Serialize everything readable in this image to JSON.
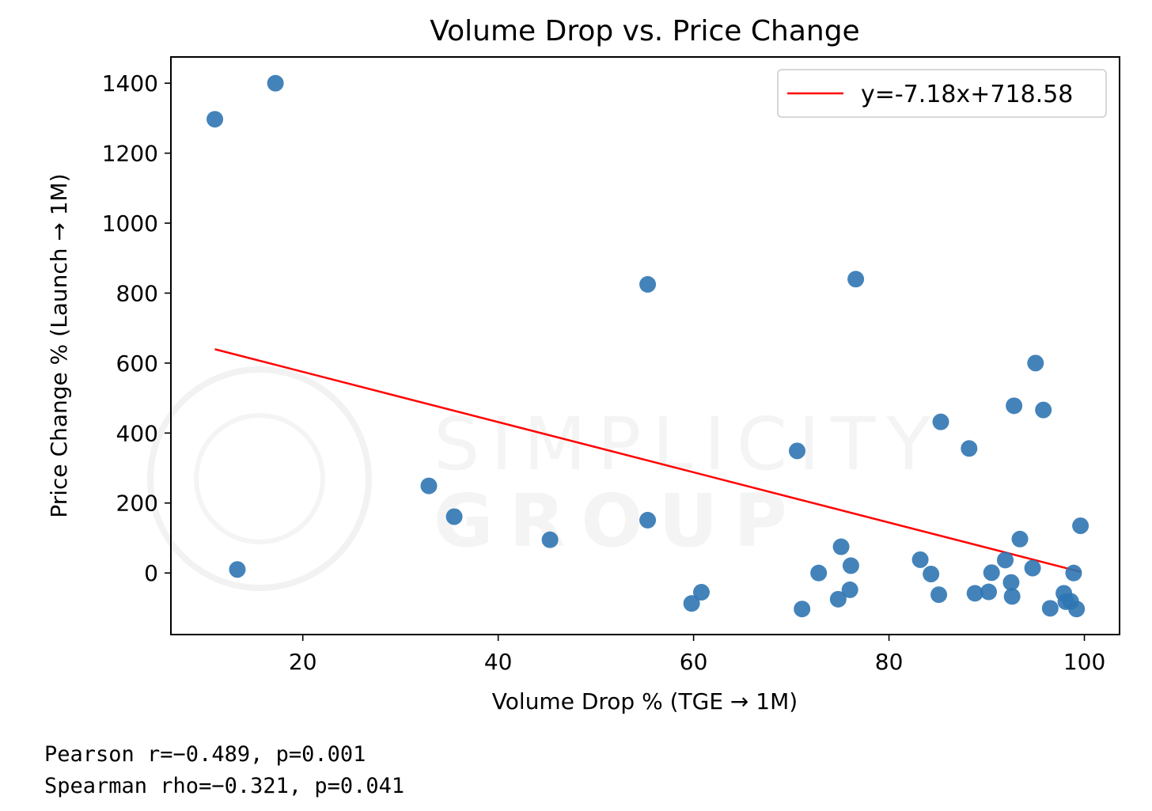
{
  "chart_data": {
    "type": "scatter",
    "title": "Volume Drop vs. Price Change",
    "xlabel": "Volume Drop % (TGE → 1M)",
    "ylabel": "Price Change % (Launch → 1M)",
    "xlim": [
      6.5,
      103.6
    ],
    "ylim": [
      -176,
      1475
    ],
    "xticks": [
      20,
      40,
      60,
      80,
      100
    ],
    "yticks": [
      0,
      200,
      400,
      600,
      800,
      1000,
      1200,
      1400
    ],
    "grid": false,
    "legend_position": "top-right",
    "point_color": "#2f76b3",
    "line_color": "#ff0000",
    "points": [
      {
        "x": 11.0,
        "y": 1297
      },
      {
        "x": 17.2,
        "y": 1400
      },
      {
        "x": 13.3,
        "y": 10
      },
      {
        "x": 32.9,
        "y": 249
      },
      {
        "x": 35.5,
        "y": 161
      },
      {
        "x": 45.3,
        "y": 95
      },
      {
        "x": 55.3,
        "y": 825
      },
      {
        "x": 55.3,
        "y": 151
      },
      {
        "x": 59.8,
        "y": -87
      },
      {
        "x": 60.8,
        "y": -55
      },
      {
        "x": 70.6,
        "y": 349
      },
      {
        "x": 71.1,
        "y": -103
      },
      {
        "x": 72.8,
        "y": 0
      },
      {
        "x": 74.8,
        "y": -75
      },
      {
        "x": 75.1,
        "y": 75
      },
      {
        "x": 76.0,
        "y": -48
      },
      {
        "x": 76.1,
        "y": 21
      },
      {
        "x": 76.6,
        "y": 840
      },
      {
        "x": 83.2,
        "y": 38
      },
      {
        "x": 84.3,
        "y": -3
      },
      {
        "x": 85.1,
        "y": -62
      },
      {
        "x": 85.3,
        "y": 432
      },
      {
        "x": 88.2,
        "y": 356
      },
      {
        "x": 88.8,
        "y": -58
      },
      {
        "x": 90.2,
        "y": -54
      },
      {
        "x": 90.5,
        "y": 1
      },
      {
        "x": 91.9,
        "y": 37
      },
      {
        "x": 92.5,
        "y": -27
      },
      {
        "x": 92.6,
        "y": -67
      },
      {
        "x": 92.8,
        "y": 478
      },
      {
        "x": 93.4,
        "y": 97
      },
      {
        "x": 94.7,
        "y": 14
      },
      {
        "x": 95.0,
        "y": 600
      },
      {
        "x": 95.8,
        "y": 466
      },
      {
        "x": 96.5,
        "y": -101
      },
      {
        "x": 97.9,
        "y": -58
      },
      {
        "x": 98.1,
        "y": -82
      },
      {
        "x": 98.6,
        "y": -81
      },
      {
        "x": 98.9,
        "y": 0
      },
      {
        "x": 99.2,
        "y": -103
      },
      {
        "x": 99.6,
        "y": 135
      }
    ],
    "fit": {
      "name": "y=-7.18x+718.58",
      "slope": -7.18,
      "intercept": 718.58,
      "x_range": [
        11.0,
        99.6
      ]
    }
  },
  "watermark": {
    "line1": "SIMPLICITY",
    "line2": "GROUP"
  },
  "stats": {
    "pearson": "Pearson r=−0.489, p=0.001",
    "spearman": "Spearman rho=−0.321, p=0.041"
  }
}
